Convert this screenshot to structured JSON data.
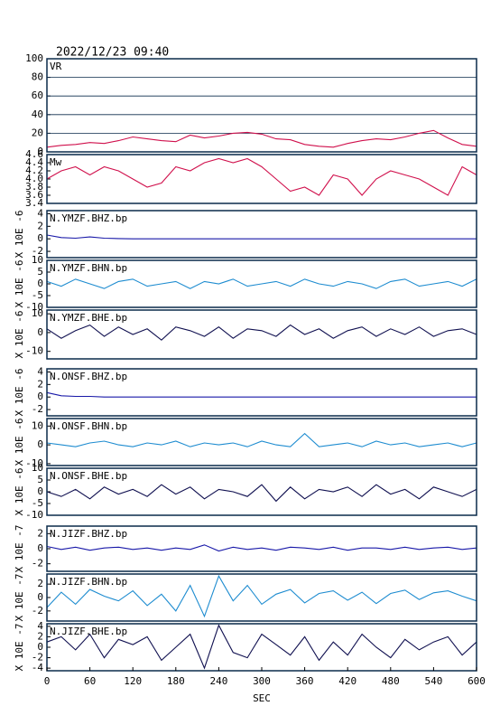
{
  "chart_data": [
    {
      "type": "line",
      "title": "2022/12/23 09:40",
      "xlim": [
        0,
        600
      ],
      "ylim": [
        0,
        100
      ],
      "yticks": [
        0,
        20,
        40,
        60,
        80,
        100
      ],
      "grid": true,
      "x": [
        0,
        20,
        40,
        60,
        80,
        100,
        120,
        140,
        160,
        180,
        200,
        220,
        240,
        260,
        280,
        300,
        320,
        340,
        360,
        380,
        400,
        420,
        440,
        460,
        480,
        500,
        520,
        540,
        560,
        580,
        600
      ],
      "series": [
        {
          "name": "VR",
          "color": "#d0104c",
          "values": [
            5,
            7,
            8,
            10,
            9,
            12,
            16,
            14,
            12,
            11,
            18,
            15,
            17,
            20,
            21,
            19,
            14,
            13,
            8,
            6,
            5,
            9,
            12,
            14,
            13,
            16,
            20,
            23,
            15,
            8,
            6
          ]
        }
      ]
    },
    {
      "type": "line",
      "xlim": [
        0,
        600
      ],
      "ylim": [
        3.4,
        4.6
      ],
      "yticks": [
        3.4,
        3.6,
        3.8,
        {
          "value": 4,
          "label": "4.0"
        },
        4.2,
        4.4,
        4.6
      ],
      "grid": false,
      "x": [
        0,
        20,
        40,
        60,
        80,
        100,
        120,
        140,
        160,
        180,
        200,
        220,
        240,
        260,
        280,
        300,
        320,
        340,
        360,
        380,
        400,
        420,
        440,
        460,
        480,
        500,
        520,
        540,
        560,
        580,
        600
      ],
      "series": [
        {
          "name": "Mw",
          "color": "#d0104c",
          "values": [
            4.0,
            4.2,
            4.3,
            4.1,
            4.3,
            4.2,
            4.0,
            3.8,
            3.9,
            4.3,
            4.2,
            4.4,
            4.5,
            4.4,
            4.5,
            4.3,
            4.0,
            3.7,
            3.8,
            3.6,
            4.1,
            4.0,
            3.6,
            4.0,
            4.2,
            4.1,
            4.0,
            3.8,
            3.6,
            4.3,
            4.1
          ]
        }
      ]
    },
    {
      "type": "line",
      "ylabel": "X 10E -6",
      "xlim": [
        0,
        600
      ],
      "ylim": [
        -3,
        4.5
      ],
      "yticks": [
        -2,
        0,
        2,
        4
      ],
      "grid": false,
      "x": [
        0,
        20,
        40,
        60,
        80,
        100,
        120,
        140,
        160,
        180,
        200,
        220,
        240,
        260,
        280,
        300,
        320,
        340,
        360,
        380,
        400,
        420,
        440,
        460,
        480,
        500,
        520,
        540,
        560,
        580,
        600
      ],
      "series": [
        {
          "name": "N.YMZF.BHZ.bp",
          "color": "#1818a8",
          "values": [
            0.6,
            0.2,
            0.1,
            0.3,
            0.1,
            0.05,
            0,
            0,
            0,
            0,
            0,
            0,
            0,
            0,
            0,
            0,
            0,
            0,
            0,
            0,
            0,
            0,
            0,
            0,
            0,
            0,
            0,
            0,
            0,
            0,
            0
          ]
        }
      ]
    },
    {
      "type": "line",
      "ylabel": "X 10E -6",
      "xlim": [
        0,
        600
      ],
      "ylim": [
        -10,
        10
      ],
      "yticks": [
        -10,
        -5,
        0,
        5,
        10
      ],
      "grid": false,
      "x": [
        0,
        20,
        40,
        60,
        80,
        100,
        120,
        140,
        160,
        180,
        200,
        220,
        240,
        260,
        280,
        300,
        320,
        340,
        360,
        380,
        400,
        420,
        440,
        460,
        480,
        500,
        520,
        540,
        560,
        580,
        600
      ],
      "series": [
        {
          "name": "N.YMZF.BHN.bp",
          "color": "#1e8cd0",
          "values": [
            1,
            -1,
            2,
            0,
            -2,
            1,
            2,
            -1,
            0,
            1,
            -2,
            1,
            0,
            2,
            -1,
            0,
            1,
            -1,
            2,
            0,
            -1,
            1,
            0,
            -2,
            1,
            2,
            -1,
            0,
            1,
            -1,
            2
          ]
        }
      ]
    },
    {
      "type": "line",
      "ylabel": "X 10E -6",
      "xlim": [
        0,
        600
      ],
      "ylim": [
        -14,
        12
      ],
      "yticks": [
        -10,
        0,
        10
      ],
      "grid": false,
      "x": [
        0,
        20,
        40,
        60,
        80,
        100,
        120,
        140,
        160,
        180,
        200,
        220,
        240,
        260,
        280,
        300,
        320,
        340,
        360,
        380,
        400,
        420,
        440,
        460,
        480,
        500,
        520,
        540,
        560,
        580,
        600
      ],
      "series": [
        {
          "name": "N.YMZF.BHE.bp",
          "color": "#101050",
          "values": [
            2,
            -3,
            1,
            4,
            -2,
            3,
            -1,
            2,
            -4,
            3,
            1,
            -2,
            3,
            -3,
            2,
            1,
            -2,
            4,
            -1,
            2,
            -3,
            1,
            3,
            -2,
            2,
            -1,
            3,
            -2,
            1,
            2,
            -1
          ]
        }
      ]
    },
    {
      "type": "line",
      "ylabel": "X 10E -6",
      "xlim": [
        0,
        600
      ],
      "ylim": [
        -3,
        4.5
      ],
      "yticks": [
        -2,
        0,
        2,
        4
      ],
      "grid": false,
      "x": [
        0,
        20,
        40,
        60,
        80,
        100,
        120,
        140,
        160,
        180,
        200,
        220,
        240,
        260,
        280,
        300,
        320,
        340,
        360,
        380,
        400,
        420,
        440,
        460,
        480,
        500,
        520,
        540,
        560,
        580,
        600
      ],
      "series": [
        {
          "name": "N.ONSF.BHZ.bp",
          "color": "#1818a8",
          "values": [
            0.7,
            0.2,
            0.1,
            0.1,
            0,
            0,
            0,
            0,
            0,
            0,
            0,
            0,
            0,
            0,
            0,
            0,
            0,
            0,
            0,
            0,
            0,
            0,
            0,
            0,
            0,
            0,
            0,
            0,
            0,
            0,
            0
          ]
        }
      ]
    },
    {
      "type": "line",
      "ylabel": "X 10E -6",
      "xlim": [
        0,
        600
      ],
      "ylim": [
        -11,
        14
      ],
      "yticks": [
        -10,
        0,
        10
      ],
      "grid": false,
      "x": [
        0,
        20,
        40,
        60,
        80,
        100,
        120,
        140,
        160,
        180,
        200,
        220,
        240,
        260,
        280,
        300,
        320,
        340,
        360,
        380,
        400,
        420,
        440,
        460,
        480,
        500,
        520,
        540,
        560,
        580,
        600
      ],
      "series": [
        {
          "name": "N.ONSF.BHN.bp",
          "color": "#1e8cd0",
          "values": [
            1,
            0,
            -1,
            1,
            2,
            0,
            -1,
            1,
            0,
            2,
            -1,
            1,
            0,
            1,
            -1,
            2,
            0,
            -1,
            6,
            -1,
            0,
            1,
            -1,
            2,
            0,
            1,
            -1,
            0,
            1,
            -1,
            1
          ]
        }
      ]
    },
    {
      "type": "line",
      "ylabel": "X 10E -6",
      "xlim": [
        0,
        600
      ],
      "ylim": [
        -10,
        10
      ],
      "yticks": [
        -10,
        -5,
        0,
        5,
        10
      ],
      "grid": false,
      "x": [
        0,
        20,
        40,
        60,
        80,
        100,
        120,
        140,
        160,
        180,
        200,
        220,
        240,
        260,
        280,
        300,
        320,
        340,
        360,
        380,
        400,
        420,
        440,
        460,
        480,
        500,
        520,
        540,
        560,
        580,
        600
      ],
      "series": [
        {
          "name": "N.ONSF.BHE.bp",
          "color": "#101050",
          "values": [
            0,
            -2,
            1,
            -3,
            2,
            -1,
            1,
            -2,
            3,
            -1,
            2,
            -3,
            1,
            0,
            -2,
            3,
            -4,
            2,
            -3,
            1,
            0,
            2,
            -2,
            3,
            -1,
            1,
            -3,
            2,
            0,
            -2,
            1
          ]
        }
      ]
    },
    {
      "type": "line",
      "ylabel": "X 10E -7",
      "xlim": [
        0,
        600
      ],
      "ylim": [
        -3,
        3
      ],
      "yticks": [
        -2,
        0,
        2
      ],
      "grid": false,
      "x": [
        0,
        20,
        40,
        60,
        80,
        100,
        120,
        140,
        160,
        180,
        200,
        220,
        240,
        260,
        280,
        300,
        320,
        340,
        360,
        380,
        400,
        420,
        440,
        460,
        480,
        500,
        520,
        540,
        560,
        580,
        600
      ],
      "series": [
        {
          "name": "N.JIZF.BHZ.bp",
          "color": "#1818a8",
          "values": [
            0.3,
            -0.1,
            0.2,
            -0.2,
            0.1,
            0.2,
            -0.1,
            0.1,
            -0.2,
            0.1,
            -0.1,
            0.5,
            -0.3,
            0.2,
            -0.1,
            0.1,
            -0.2,
            0.2,
            0.1,
            -0.1,
            0.2,
            -0.2,
            0.1,
            0.1,
            -0.1,
            0.2,
            -0.1,
            0.1,
            0.2,
            -0.1,
            0.1
          ]
        }
      ]
    },
    {
      "type": "line",
      "ylabel": "X 10E -7",
      "xlim": [
        0,
        600
      ],
      "ylim": [
        -3.5,
        3.5
      ],
      "yticks": [
        -2,
        0,
        2
      ],
      "grid": false,
      "x": [
        0,
        20,
        40,
        60,
        80,
        100,
        120,
        140,
        160,
        180,
        200,
        220,
        240,
        260,
        280,
        300,
        320,
        340,
        360,
        380,
        400,
        420,
        440,
        460,
        480,
        500,
        520,
        540,
        560,
        580,
        600
      ],
      "series": [
        {
          "name": "N.JIZF.BHN.bp",
          "color": "#1e8cd0",
          "values": [
            -1.5,
            0.8,
            -1.0,
            1.2,
            0.2,
            -0.5,
            1.0,
            -1.2,
            0.5,
            -2.0,
            1.8,
            -2.8,
            3.2,
            -0.5,
            1.8,
            -1.0,
            0.5,
            1.2,
            -0.8,
            0.6,
            1.0,
            -0.4,
            0.8,
            -0.9,
            0.6,
            1.1,
            -0.3,
            0.7,
            1.0,
            0.2,
            -0.5
          ]
        }
      ]
    },
    {
      "type": "line",
      "ylabel": "X 10E -7",
      "xlabel": "SEC",
      "xlim": [
        0,
        600
      ],
      "ylim": [
        -4.5,
        4.5
      ],
      "yticks": [
        -4,
        -2,
        0,
        2,
        4
      ],
      "grid": false,
      "xticks": [
        0,
        60,
        120,
        180,
        240,
        300,
        360,
        420,
        480,
        540,
        600
      ],
      "x": [
        0,
        20,
        40,
        60,
        80,
        100,
        120,
        140,
        160,
        180,
        200,
        220,
        240,
        260,
        280,
        300,
        320,
        340,
        360,
        380,
        400,
        420,
        440,
        460,
        480,
        500,
        520,
        540,
        560,
        580,
        600
      ],
      "series": [
        {
          "name": "N.JIZF.BHE.bp",
          "color": "#101050",
          "values": [
            1.0,
            2.0,
            -0.5,
            2.5,
            -2.0,
            1.5,
            0.5,
            2.0,
            -2.5,
            0.0,
            2.5,
            -4.0,
            4.2,
            -1.0,
            -2.0,
            2.5,
            0.5,
            -1.5,
            2.0,
            -2.5,
            1.0,
            -1.5,
            2.5,
            0.0,
            -2.0,
            1.5,
            -0.5,
            1.0,
            2.0,
            -1.5,
            1.0
          ]
        }
      ]
    }
  ]
}
